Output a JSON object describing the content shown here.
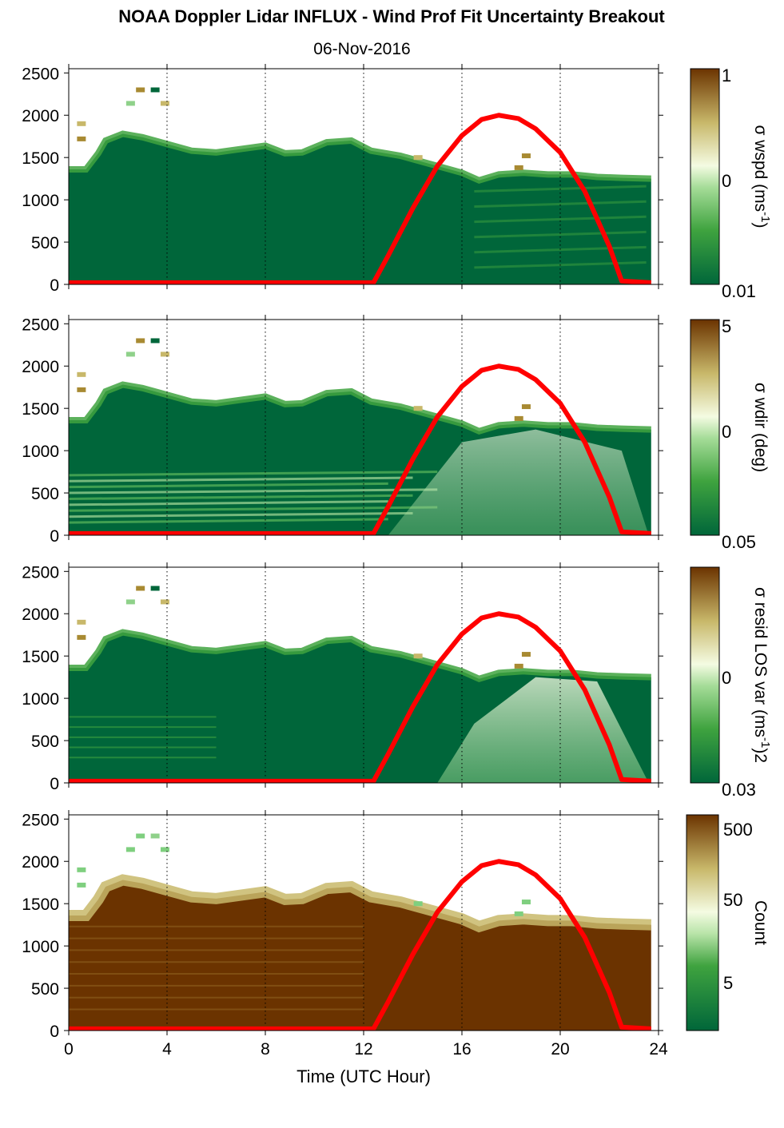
{
  "title": "NOAA Doppler Lidar INFLUX - Wind Prof Fit Uncertainty Breakout",
  "subtitle": "06-Nov-2016",
  "colors": {
    "dark_green": "#00663a",
    "mid_green": "#3fa33f",
    "light_green": "#8fd18a",
    "pale": "#f4fbe2",
    "tan": "#c8b86a",
    "olive": "#a88a32",
    "dark_brown": "#6b3300",
    "sun_curve": "#ff0000"
  },
  "chart_data": [
    {
      "type": "heatmap",
      "name": "sigma-wspd",
      "x_range": [
        0,
        24
      ],
      "y_range": [
        0,
        2550
      ],
      "x_ticks": [
        "0",
        "4",
        "8",
        "12",
        "16",
        "20",
        "24"
      ],
      "y_ticks": [
        "0",
        "500",
        "1000",
        "1500",
        "2000",
        "2500"
      ],
      "grid_x": [
        4,
        8,
        12,
        16,
        20,
        24
      ],
      "colorbar": {
        "ticks": [
          "1",
          "0",
          "0.01"
        ],
        "label": "σ wspd (ms-1)"
      },
      "top_of_data_m": [
        [
          0,
          1360
        ],
        [
          0.7,
          1360
        ],
        [
          1.2,
          1550
        ],
        [
          1.5,
          1700
        ],
        [
          2.2,
          1780
        ],
        [
          3,
          1740
        ],
        [
          4,
          1660
        ],
        [
          5,
          1580
        ],
        [
          6,
          1560
        ],
        [
          7,
          1600
        ],
        [
          8,
          1640
        ],
        [
          8.8,
          1550
        ],
        [
          9.5,
          1560
        ],
        [
          10.5,
          1680
        ],
        [
          11.5,
          1700
        ],
        [
          12.3,
          1580
        ],
        [
          13.5,
          1520
        ],
        [
          15,
          1400
        ],
        [
          16,
          1320
        ],
        [
          16.7,
          1230
        ],
        [
          17.5,
          1300
        ],
        [
          18.5,
          1320
        ],
        [
          19.5,
          1300
        ],
        [
          20.5,
          1300
        ],
        [
          21.5,
          1270
        ],
        [
          22.5,
          1260
        ],
        [
          23.7,
          1250
        ]
      ]
    },
    {
      "type": "heatmap",
      "name": "sigma-wdir",
      "x_range": [
        0,
        24
      ],
      "y_range": [
        0,
        2550
      ],
      "x_ticks": [
        "0",
        "4",
        "8",
        "12",
        "16",
        "20",
        "24"
      ],
      "y_ticks": [
        "0",
        "500",
        "1000",
        "1500",
        "2000",
        "2500"
      ],
      "grid_x": [
        4,
        8,
        12,
        16,
        20,
        24
      ],
      "colorbar": {
        "ticks": [
          "5",
          "0",
          "0.05"
        ],
        "label": "σ wdir (deg)"
      },
      "top_of_data_m": [
        [
          0,
          1360
        ],
        [
          0.7,
          1360
        ],
        [
          1.2,
          1550
        ],
        [
          1.5,
          1700
        ],
        [
          2.2,
          1780
        ],
        [
          3,
          1740
        ],
        [
          4,
          1660
        ],
        [
          5,
          1580
        ],
        [
          6,
          1560
        ],
        [
          7,
          1600
        ],
        [
          8,
          1640
        ],
        [
          8.8,
          1550
        ],
        [
          9.5,
          1560
        ],
        [
          10.5,
          1680
        ],
        [
          11.5,
          1700
        ],
        [
          12.3,
          1580
        ],
        [
          13.5,
          1520
        ],
        [
          15,
          1400
        ],
        [
          16,
          1320
        ],
        [
          16.7,
          1230
        ],
        [
          17.5,
          1300
        ],
        [
          18.5,
          1320
        ],
        [
          19.5,
          1300
        ],
        [
          20.5,
          1300
        ],
        [
          21.5,
          1270
        ],
        [
          22.5,
          1260
        ],
        [
          23.7,
          1250
        ]
      ]
    },
    {
      "type": "heatmap",
      "name": "sigma-resid",
      "x_range": [
        0,
        24
      ],
      "y_range": [
        0,
        2550
      ],
      "x_ticks": [
        "0",
        "4",
        "8",
        "12",
        "16",
        "20",
        "24"
      ],
      "y_ticks": [
        "0",
        "500",
        "1000",
        "1500",
        "2000",
        "2500"
      ],
      "grid_x": [
        4,
        8,
        12,
        16,
        20,
        24
      ],
      "colorbar": {
        "ticks": [
          "0",
          "0.03"
        ],
        "label": "σ resid LOS var (ms-1)2"
      },
      "top_of_data_m": [
        [
          0,
          1360
        ],
        [
          0.7,
          1360
        ],
        [
          1.2,
          1550
        ],
        [
          1.5,
          1700
        ],
        [
          2.2,
          1780
        ],
        [
          3,
          1740
        ],
        [
          4,
          1660
        ],
        [
          5,
          1580
        ],
        [
          6,
          1560
        ],
        [
          7,
          1600
        ],
        [
          8,
          1640
        ],
        [
          8.8,
          1550
        ],
        [
          9.5,
          1560
        ],
        [
          10.5,
          1680
        ],
        [
          11.5,
          1700
        ],
        [
          12.3,
          1580
        ],
        [
          13.5,
          1520
        ],
        [
          15,
          1400
        ],
        [
          16,
          1320
        ],
        [
          16.7,
          1230
        ],
        [
          17.5,
          1300
        ],
        [
          18.5,
          1320
        ],
        [
          19.5,
          1300
        ],
        [
          20.5,
          1300
        ],
        [
          21.5,
          1270
        ],
        [
          22.5,
          1260
        ],
        [
          23.7,
          1250
        ]
      ]
    },
    {
      "type": "heatmap",
      "name": "count",
      "x_range": [
        0,
        24
      ],
      "y_range": [
        0,
        2550
      ],
      "x_ticks": [
        "0",
        "4",
        "8",
        "12",
        "16",
        "20",
        "24"
      ],
      "y_ticks": [
        "0",
        "500",
        "1000",
        "1500",
        "2000",
        "2500"
      ],
      "grid_x": [
        4,
        8,
        12,
        16,
        20,
        24
      ],
      "colorbar": {
        "ticks": [
          "500",
          "50",
          "5"
        ],
        "label": "Count"
      },
      "top_of_data_m": [
        [
          0,
          1360
        ],
        [
          0.7,
          1360
        ],
        [
          1.2,
          1550
        ],
        [
          1.5,
          1700
        ],
        [
          2.2,
          1780
        ],
        [
          3,
          1740
        ],
        [
          4,
          1660
        ],
        [
          5,
          1580
        ],
        [
          6,
          1560
        ],
        [
          7,
          1600
        ],
        [
          8,
          1640
        ],
        [
          8.8,
          1550
        ],
        [
          9.5,
          1560
        ],
        [
          10.5,
          1680
        ],
        [
          11.5,
          1700
        ],
        [
          12.3,
          1580
        ],
        [
          13.5,
          1520
        ],
        [
          15,
          1400
        ],
        [
          16,
          1320
        ],
        [
          16.7,
          1230
        ],
        [
          17.5,
          1300
        ],
        [
          18.5,
          1320
        ],
        [
          19.5,
          1300
        ],
        [
          20.5,
          1300
        ],
        [
          21.5,
          1270
        ],
        [
          22.5,
          1260
        ],
        [
          23.7,
          1250
        ]
      ]
    }
  ],
  "sun_curve": {
    "points": [
      [
        0,
        20
      ],
      [
        12.4,
        20
      ],
      [
        13,
        340
      ],
      [
        14,
        900
      ],
      [
        15,
        1400
      ],
      [
        16,
        1760
      ],
      [
        16.8,
        1950
      ],
      [
        17.5,
        2000
      ],
      [
        18.3,
        1960
      ],
      [
        19,
        1840
      ],
      [
        20,
        1560
      ],
      [
        21,
        1100
      ],
      [
        22,
        450
      ],
      [
        22.5,
        40
      ],
      [
        23.7,
        20
      ]
    ]
  },
  "xlabel": "Time (UTC Hour)"
}
